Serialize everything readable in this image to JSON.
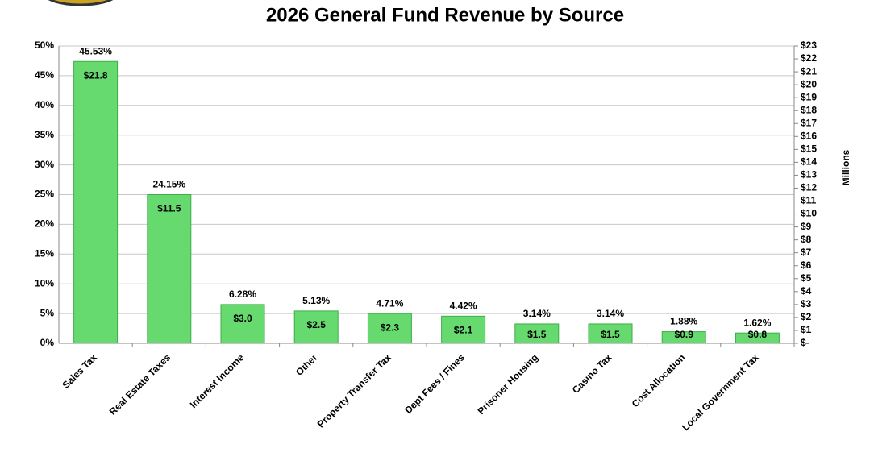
{
  "chart_data": {
    "type": "bar",
    "title": "2026 General Fund Revenue by Source",
    "categories": [
      "Sales Tax",
      "Real Estate Taxes",
      "Interest Income",
      "Other",
      "Property Transfer Tax",
      "Dept Fees / Fines",
      "Prisoner Housing",
      "Casino Tax",
      "Cost Allocation",
      "Local Government Tax"
    ],
    "series": [
      {
        "axis": "y2",
        "color": "#66d96f",
        "values": [
          21.8,
          11.5,
          3.0,
          2.5,
          2.3,
          2.1,
          1.5,
          1.5,
          0.9,
          0.8
        ],
        "value_labels": [
          "$21.8",
          "$11.5",
          "$3.0",
          "$2.5",
          "$2.3",
          "$2.1",
          "$1.5",
          "$1.5",
          "$0.9",
          "$0.8"
        ],
        "percents": [
          45.53,
          24.15,
          6.28,
          5.13,
          4.71,
          4.42,
          3.14,
          3.14,
          1.88,
          1.62
        ],
        "percent_labels": [
          "45.53%",
          "24.15%",
          "6.28%",
          "5.13%",
          "4.71%",
          "4.42%",
          "3.14%",
          "3.14%",
          "1.88%",
          "1.62%"
        ]
      }
    ],
    "ylim": [
      0,
      50
    ],
    "yticks": [
      {
        "value": 0,
        "label": "0%"
      },
      {
        "value": 5,
        "label": "5%"
      },
      {
        "value": 10,
        "label": "10%"
      },
      {
        "value": 15,
        "label": "15%"
      },
      {
        "value": 20,
        "label": "20%"
      },
      {
        "value": 25,
        "label": "25%"
      },
      {
        "value": 30,
        "label": "30%"
      },
      {
        "value": 35,
        "label": "35%"
      },
      {
        "value": 40,
        "label": "40%"
      },
      {
        "value": 45,
        "label": "45%"
      },
      {
        "value": 50,
        "label": "50%"
      }
    ],
    "y2lim": [
      0,
      23
    ],
    "y2ticks": [
      {
        "value": 0,
        "label": "$-"
      },
      {
        "value": 1,
        "label": "$1"
      },
      {
        "value": 2,
        "label": "$2"
      },
      {
        "value": 3,
        "label": "$3"
      },
      {
        "value": 4,
        "label": "$4"
      },
      {
        "value": 5,
        "label": "$5"
      },
      {
        "value": 6,
        "label": "$6"
      },
      {
        "value": 7,
        "label": "$7"
      },
      {
        "value": 8,
        "label": "$8"
      },
      {
        "value": 9,
        "label": "$9"
      },
      {
        "value": 10,
        "label": "$10"
      },
      {
        "value": 11,
        "label": "$11"
      },
      {
        "value": 12,
        "label": "$12"
      },
      {
        "value": 13,
        "label": "$13"
      },
      {
        "value": 14,
        "label": "$14"
      },
      {
        "value": 15,
        "label": "$15"
      },
      {
        "value": 16,
        "label": "$16"
      },
      {
        "value": 17,
        "label": "$17"
      },
      {
        "value": 18,
        "label": "$18"
      },
      {
        "value": 19,
        "label": "$19"
      },
      {
        "value": 20,
        "label": "$20"
      },
      {
        "value": 21,
        "label": "$21"
      },
      {
        "value": 22,
        "label": "$22"
      },
      {
        "value": 23,
        "label": "$23"
      }
    ],
    "y2label": "Millions",
    "grid": true
  }
}
